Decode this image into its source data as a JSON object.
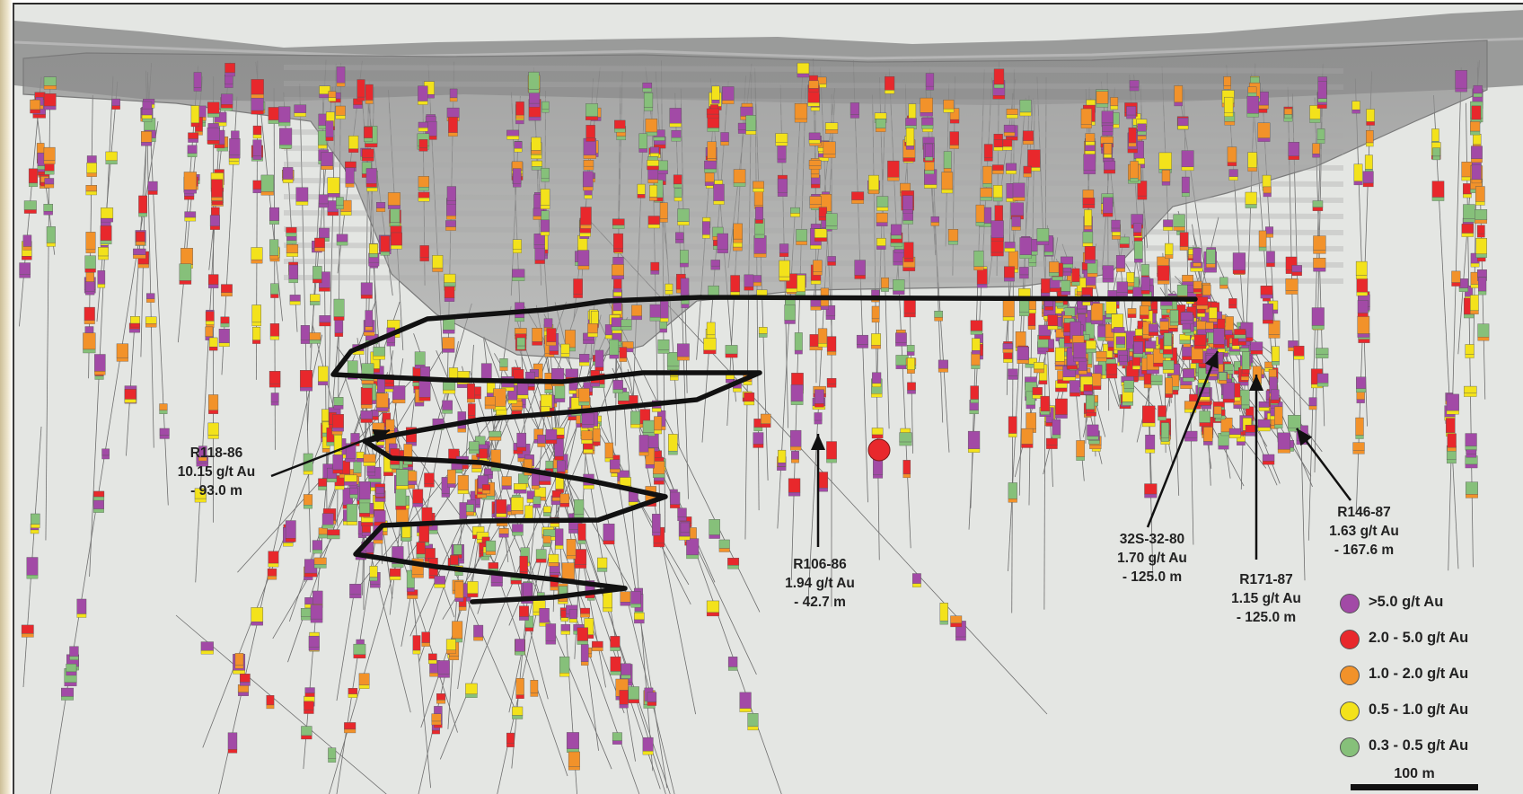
{
  "callouts": [
    {
      "id": "R118-86",
      "hole": "R118-86",
      "grade": "10.15 g/t Au",
      "length": "- 93.0 m"
    },
    {
      "id": "R106-86",
      "hole": "R106-86",
      "grade": "1.94 g/t Au",
      "length": "- 42.7 m"
    },
    {
      "id": "32S-32-80",
      "hole": "32S-32-80",
      "grade": "1.70 g/t Au",
      "length": "- 125.0 m"
    },
    {
      "id": "R171-87",
      "hole": "R171-87",
      "grade": "1.15 g/t Au",
      "length": "- 125.0 m"
    },
    {
      "id": "R146-87",
      "hole": "R146-87",
      "grade": "1.63 g/t Au",
      "length": "- 167.6 m"
    }
  ],
  "legend": [
    {
      "label": ">5.0 g/t Au",
      "color": "#a24aa6"
    },
    {
      "label": "2.0 - 5.0 g/t Au",
      "color": "#e8282c"
    },
    {
      "label": "1.0 - 2.0 g/t Au",
      "color": "#f2922a"
    },
    {
      "label": "0.5 - 1.0 g/t Au",
      "color": "#f3e21b"
    },
    {
      "label": "0.3 - 0.5 g/t Au",
      "color": "#86c07a"
    }
  ],
  "scale_bar": {
    "label": "100 m"
  }
}
